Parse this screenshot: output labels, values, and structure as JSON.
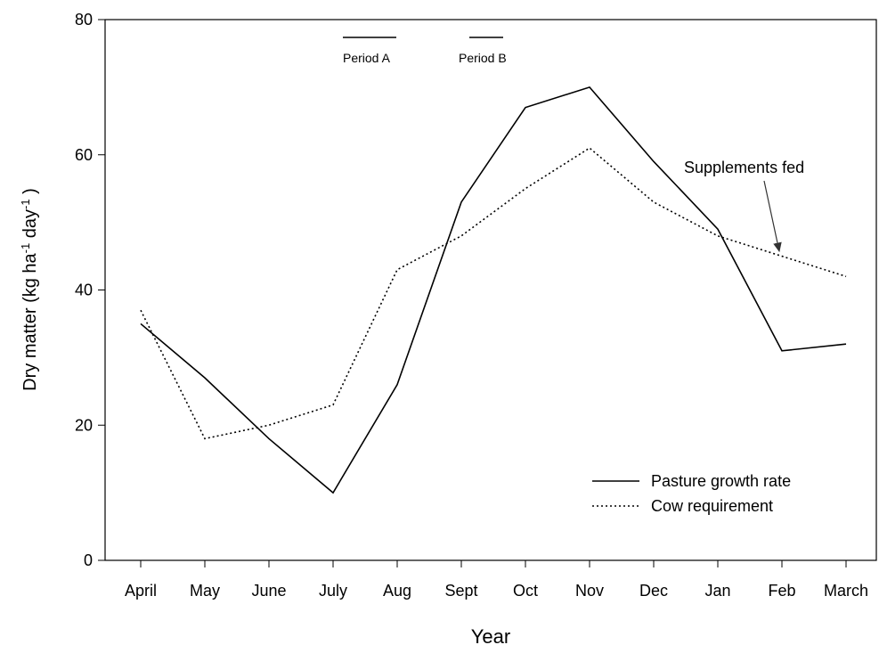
{
  "chart_data": {
    "type": "line",
    "xlabel": "Year",
    "ylabel_parts": [
      {
        "text": "Dry matter (kg ha"
      },
      {
        "text": "-1",
        "sup": true
      },
      {
        "text": " day"
      },
      {
        "text": "-1",
        "sup": true
      },
      {
        "text": " )"
      }
    ],
    "categories": [
      "April",
      "May",
      "June",
      "July",
      "Aug",
      "Sept",
      "Oct",
      "Nov",
      "Dec",
      "Jan",
      "Feb",
      "March"
    ],
    "series": [
      {
        "name": "Pasture growth rate",
        "color": "#000000",
        "dash": "solid",
        "values": [
          35,
          27,
          18,
          10,
          26,
          53,
          67,
          70,
          59,
          49,
          31,
          32
        ]
      },
      {
        "name": "Cow requirement",
        "color": "#000000",
        "dash": "dotted",
        "values": [
          37,
          18,
          20,
          23,
          43,
          48,
          55,
          61,
          53,
          48,
          45,
          42
        ]
      }
    ],
    "ylim": [
      0,
      80
    ],
    "yticks": [
      0,
      20,
      40,
      60,
      80
    ],
    "annotations": [
      "Period A",
      "Period B",
      "Supplements fed"
    ],
    "legend": "lower right"
  }
}
